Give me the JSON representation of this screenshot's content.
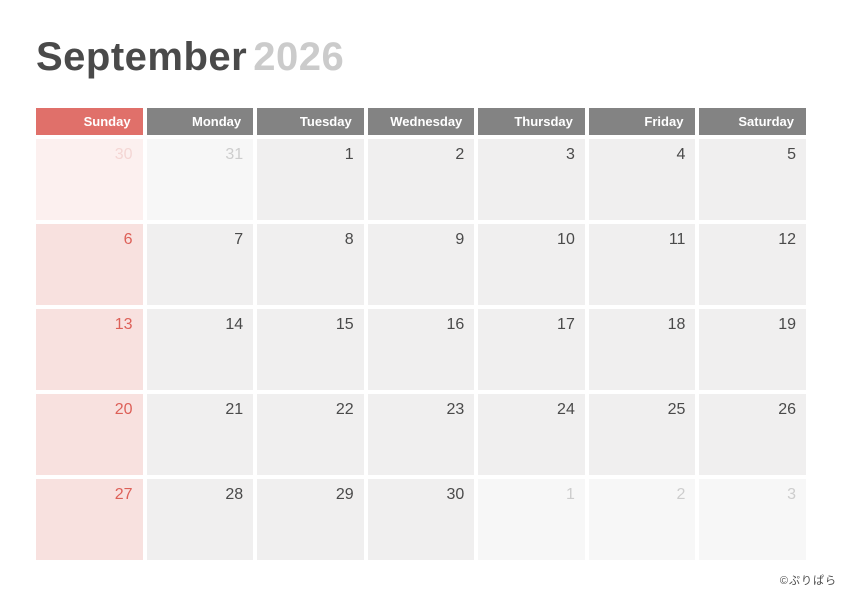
{
  "title": {
    "month": "September",
    "year": "2026"
  },
  "weekdays": [
    {
      "label": "Sunday",
      "type": "sunday"
    },
    {
      "label": "Monday",
      "type": "weekday"
    },
    {
      "label": "Tuesday",
      "type": "weekday"
    },
    {
      "label": "Wednesday",
      "type": "weekday"
    },
    {
      "label": "Thursday",
      "type": "weekday"
    },
    {
      "label": "Friday",
      "type": "weekday"
    },
    {
      "label": "Saturday",
      "type": "weekday"
    }
  ],
  "cells": [
    {
      "day": "30",
      "kind": "sunday_adjacent"
    },
    {
      "day": "31",
      "kind": "adjacent"
    },
    {
      "day": "1",
      "kind": "current"
    },
    {
      "day": "2",
      "kind": "current"
    },
    {
      "day": "3",
      "kind": "current"
    },
    {
      "day": "4",
      "kind": "current"
    },
    {
      "day": "5",
      "kind": "current"
    },
    {
      "day": "6",
      "kind": "sunday_current"
    },
    {
      "day": "7",
      "kind": "current"
    },
    {
      "day": "8",
      "kind": "current"
    },
    {
      "day": "9",
      "kind": "current"
    },
    {
      "day": "10",
      "kind": "current"
    },
    {
      "day": "11",
      "kind": "current"
    },
    {
      "day": "12",
      "kind": "current"
    },
    {
      "day": "13",
      "kind": "sunday_current"
    },
    {
      "day": "14",
      "kind": "current"
    },
    {
      "day": "15",
      "kind": "current"
    },
    {
      "day": "16",
      "kind": "current"
    },
    {
      "day": "17",
      "kind": "current"
    },
    {
      "day": "18",
      "kind": "current"
    },
    {
      "day": "19",
      "kind": "current"
    },
    {
      "day": "20",
      "kind": "sunday_current"
    },
    {
      "day": "21",
      "kind": "current"
    },
    {
      "day": "22",
      "kind": "current"
    },
    {
      "day": "23",
      "kind": "current"
    },
    {
      "day": "24",
      "kind": "current"
    },
    {
      "day": "25",
      "kind": "current"
    },
    {
      "day": "26",
      "kind": "current"
    },
    {
      "day": "27",
      "kind": "sunday_current"
    },
    {
      "day": "28",
      "kind": "current"
    },
    {
      "day": "29",
      "kind": "current"
    },
    {
      "day": "30",
      "kind": "current"
    },
    {
      "day": "1",
      "kind": "adjacent"
    },
    {
      "day": "2",
      "kind": "adjacent"
    },
    {
      "day": "3",
      "kind": "adjacent"
    }
  ],
  "watermark": "©ぷりぱら",
  "colors": {
    "title_month": "#4a4a4a",
    "title_year": "#cbcbcb",
    "sunday_header_bg": "#e0706a",
    "weekday_header_bg": "#838383",
    "header_text": "#ffffff",
    "current_cell_bg": "#f0efef",
    "adjacent_cell_bg": "#f7f7f7",
    "sunday_current_cell_bg": "#f8e1df",
    "sunday_adjacent_cell_bg": "#fcf0ef",
    "current_day_text": "#4a4a4a",
    "adjacent_day_text": "#cdcdcd",
    "sunday_current_day_text": "#dd6058",
    "sunday_adjacent_day_text": "#f4d6d4"
  }
}
